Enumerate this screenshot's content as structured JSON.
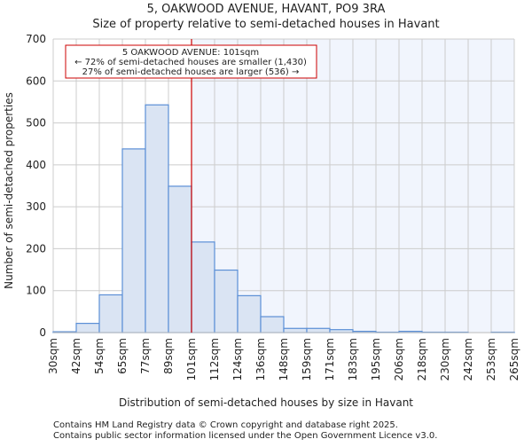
{
  "chart_data": {
    "type": "bar",
    "title": "5, OAKWOOD AVENUE, HAVANT, PO9 3RA",
    "subtitle": "Size of property relative to semi-detached houses in Havant",
    "xlabel": "Distribution of semi-detached houses by size in Havant",
    "ylabel": "Number of semi-detached properties",
    "ylim": [
      0,
      700
    ],
    "yticks": [
      0,
      100,
      200,
      300,
      400,
      500,
      600,
      700
    ],
    "bin_edges_labels": [
      "30sqm",
      "42sqm",
      "54sqm",
      "65sqm",
      "77sqm",
      "89sqm",
      "101sqm",
      "112sqm",
      "124sqm",
      "136sqm",
      "148sqm",
      "159sqm",
      "171sqm",
      "183sqm",
      "195sqm",
      "206sqm",
      "218sqm",
      "230sqm",
      "242sqm",
      "253sqm",
      "265sqm"
    ],
    "values": [
      2,
      22,
      90,
      438,
      543,
      349,
      216,
      149,
      88,
      38,
      10,
      10,
      7,
      3,
      1,
      3,
      1,
      1,
      0,
      1
    ],
    "marker": {
      "bin_index": 6,
      "label": "101sqm"
    },
    "annotation": {
      "line1": "5 OAKWOOD AVENUE: 101sqm",
      "line2": "← 72% of semi-detached houses are smaller (1,430)",
      "line3": "27% of semi-detached houses are larger (536) →"
    },
    "grid": true,
    "colors": {
      "bar_fill": "#dae4f3",
      "bar_stroke": "#5b8fd6",
      "marker": "#cc0000",
      "highlight_bg": "#f1f5fd",
      "grid": "#cccccc"
    }
  },
  "footer": {
    "line1": "Contains HM Land Registry data © Crown copyright and database right 2025.",
    "line2": "Contains public sector information licensed under the Open Government Licence v3.0."
  }
}
